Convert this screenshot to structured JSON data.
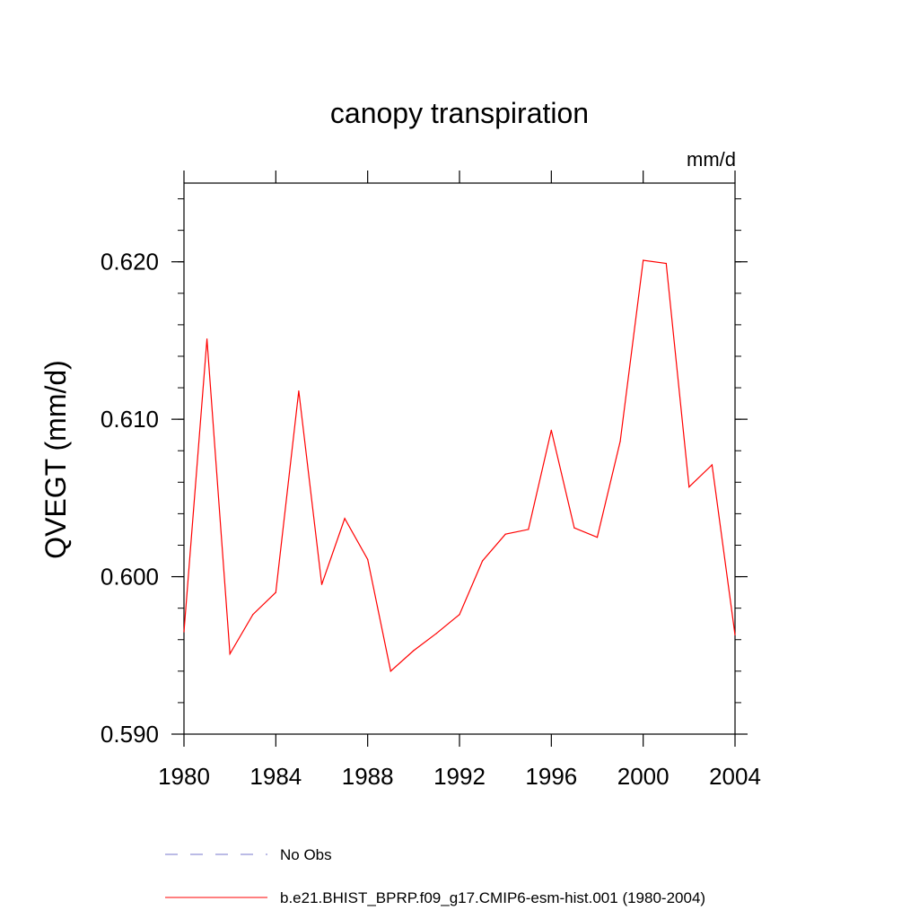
{
  "chart_data": {
    "type": "line",
    "title": "canopy transpiration",
    "units_label": "mm/d",
    "ylabel": "QVEGT  (mm/d)",
    "xlabel": "",
    "xlim": [
      1980,
      2004
    ],
    "ylim": [
      0.59,
      0.625
    ],
    "x_ticks": [
      1980,
      1984,
      1988,
      1992,
      1996,
      2000,
      2004
    ],
    "x_tick_labels": [
      "1980",
      "1984",
      "1988",
      "1992",
      "1996",
      "2000",
      "2004"
    ],
    "y_ticks": [
      0.59,
      0.6,
      0.61,
      0.62
    ],
    "y_tick_labels": [
      "0.590",
      "0.600",
      "0.610",
      "0.620"
    ],
    "grid": false,
    "legend_position": "bottom",
    "series": [
      {
        "name": "No Obs",
        "color": "#7777cc",
        "style": "dashed",
        "x": [],
        "values": []
      },
      {
        "name": "b.e21.BHIST_BPRP.f09_g17.CMIP6-esm-hist.001 (1980-2004)",
        "color": "#ff0000",
        "style": "solid",
        "x": [
          1980,
          1981,
          1982,
          1983,
          1984,
          1985,
          1986,
          1987,
          1988,
          1989,
          1990,
          1991,
          1992,
          1993,
          1994,
          1995,
          1996,
          1997,
          1998,
          1999,
          2000,
          2001,
          2002,
          2003,
          2004
        ],
        "values": [
          0.5965,
          0.6151,
          0.5951,
          0.5976,
          0.599,
          0.6118,
          0.5995,
          0.6037,
          0.6011,
          0.594,
          0.5953,
          0.5964,
          0.5976,
          0.601,
          0.6027,
          0.603,
          0.6093,
          0.6031,
          0.6025,
          0.6086,
          0.6201,
          0.6199,
          0.6057,
          0.6071,
          0.5963
        ]
      }
    ]
  }
}
